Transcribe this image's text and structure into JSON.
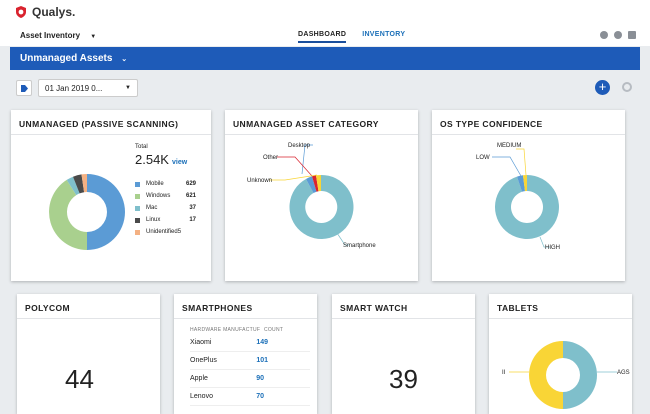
{
  "app": {
    "brand": "Qualys.",
    "module": "Asset Inventory"
  },
  "nav": {
    "tabs": [
      {
        "label": "DASHBOARD",
        "active": true
      },
      {
        "label": "INVENTORY",
        "active": false
      }
    ]
  },
  "header": {
    "title": "Unmanaged Assets"
  },
  "filter": {
    "date": "01 Jan 2019 0..."
  },
  "colors": {
    "accent": "#1e5bb8",
    "blue": "#5b9bd5",
    "green": "#a9d08e",
    "teal": "#7fbfcb",
    "orange": "#f4b183",
    "gray": "#a5a5a5",
    "yellow": "#f9d536"
  },
  "cards": {
    "unmanaged": {
      "title": "UNMANAGED (PASSIVE SCANNING)",
      "total_label": "Total",
      "total_value": "2.54K",
      "view_label": "view",
      "legend": [
        {
          "label": "Mobile",
          "value": "629",
          "color": "#5b9bd5"
        },
        {
          "label": "Windows",
          "value": "621",
          "color": "#a9d08e"
        },
        {
          "label": "Mac",
          "value": "37",
          "color": "#7fbfcb"
        },
        {
          "label": "Linux",
          "value": "17",
          "color": "#4a4a4a"
        },
        {
          "label": "Unidentified",
          "value": "5",
          "color": "#f4b183"
        }
      ]
    },
    "category": {
      "title": "UNMANAGED ASSET CATEGORY",
      "labels": {
        "desktop": "Desktop",
        "other": "Other",
        "unknown": "Unknown",
        "smartphone": "Smartphone"
      }
    },
    "os": {
      "title": "OS TYPE CONFIDENCE",
      "labels": {
        "medium": "MEDIUM",
        "low": "LOW",
        "high": "HIGH"
      }
    },
    "polycom": {
      "title": "POLYCOM",
      "value": "44"
    },
    "smartphones": {
      "title": "SMARTPHONES",
      "col1": "HARDWARE MANUFACTUF",
      "col2": "COUNT",
      "rows": [
        {
          "name": "Xiaomi",
          "count": "149"
        },
        {
          "name": "OnePlus",
          "count": "101"
        },
        {
          "name": "Apple",
          "count": "90"
        },
        {
          "name": "Lenovo",
          "count": "70"
        }
      ]
    },
    "smartwatch": {
      "title": "SMART WATCH",
      "value": "39"
    },
    "tablets": {
      "title": "TABLETS",
      "label_left": "II",
      "label_right": "AGS"
    }
  }
}
